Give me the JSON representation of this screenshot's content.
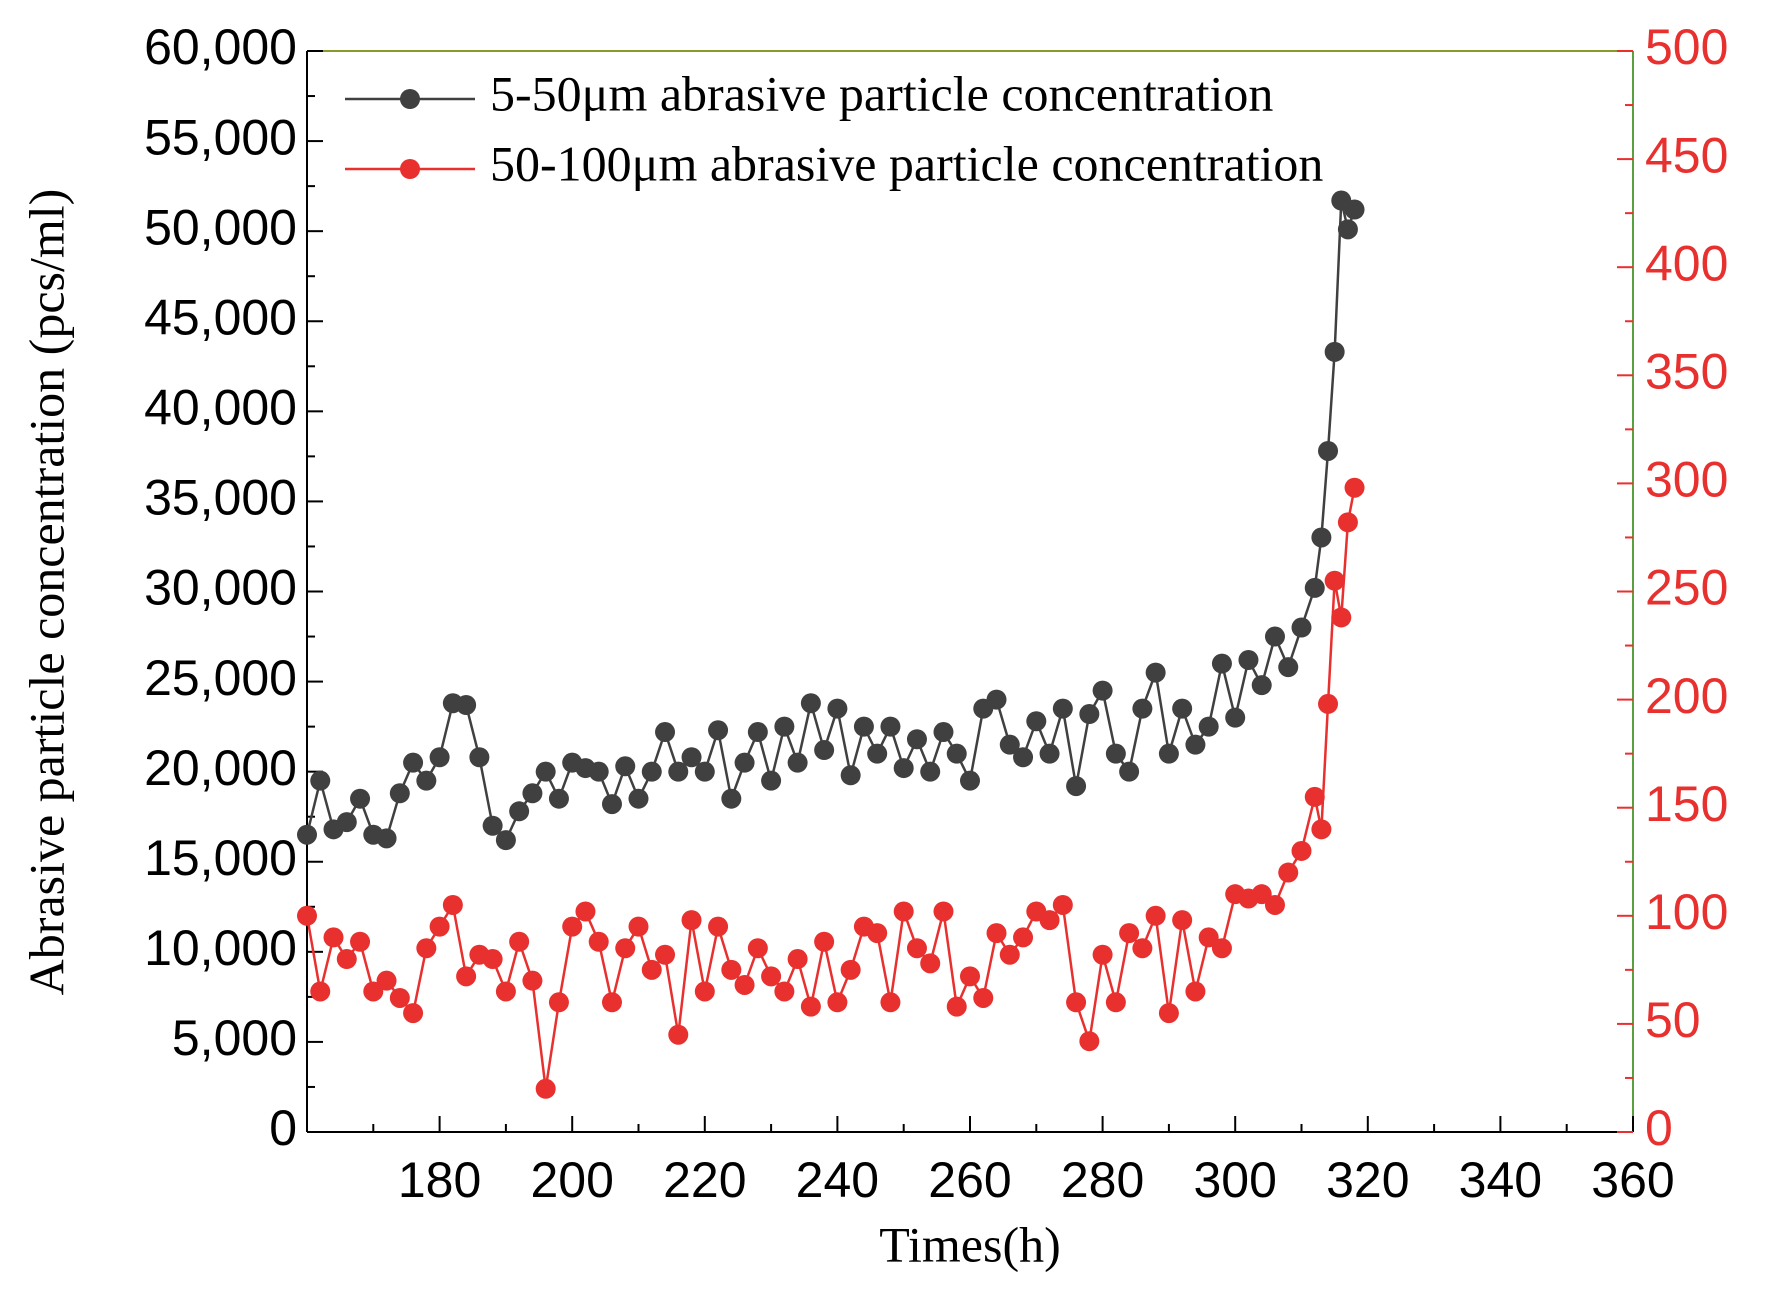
{
  "chart_data": {
    "type": "line",
    "xlabel": "Times(h)",
    "ylabel": "Abrasive particle concentration (pcs/ml)",
    "x": [
      160,
      162,
      164,
      166,
      168,
      170,
      172,
      174,
      176,
      178,
      180,
      182,
      184,
      186,
      188,
      190,
      192,
      194,
      196,
      198,
      200,
      202,
      204,
      206,
      208,
      210,
      212,
      214,
      216,
      218,
      220,
      222,
      224,
      226,
      228,
      230,
      232,
      234,
      236,
      238,
      240,
      242,
      244,
      246,
      248,
      250,
      252,
      254,
      256,
      258,
      260,
      262,
      264,
      266,
      268,
      270,
      272,
      274,
      276,
      278,
      280,
      282,
      284,
      286,
      288,
      290,
      292,
      294,
      296,
      298,
      300,
      302,
      304,
      306,
      308,
      310,
      312,
      313,
      314,
      315,
      316,
      317,
      318
    ],
    "series": [
      {
        "name": "5-50μm abrasive particle concentration",
        "color": "#404040",
        "values": [
          16500,
          19500,
          16800,
          17200,
          18500,
          16500,
          16300,
          18800,
          20500,
          19500,
          20800,
          23800,
          23700,
          20800,
          17000,
          16200,
          17800,
          18800,
          20000,
          18500,
          20500,
          20200,
          20000,
          18200,
          20300,
          18500,
          20000,
          22200,
          20000,
          20800,
          20000,
          22300,
          18500,
          20500,
          22200,
          19500,
          22500,
          20500,
          23800,
          21200,
          23500,
          19800,
          22500,
          21000,
          22500,
          20200,
          21800,
          20000,
          22200,
          21000,
          19500,
          23500,
          24000,
          21500,
          20800,
          22800,
          21000,
          23500,
          19200,
          23200,
          24500,
          21000,
          20000,
          23500,
          25500,
          21000,
          23500,
          21500,
          22500,
          26000,
          23000,
          26200,
          24800,
          27500,
          25800,
          28000,
          30200,
          33000,
          37800,
          43300,
          51700,
          50100,
          51200
        ]
      },
      {
        "name": "50-100μm abrasive particle concentration",
        "color": "#e8302f",
        "axis": "y2",
        "values": [
          100,
          65,
          90,
          80,
          88,
          65,
          70,
          62,
          55,
          85,
          95,
          105,
          72,
          82,
          80,
          65,
          88,
          70,
          20,
          60,
          95,
          102,
          88,
          60,
          85,
          95,
          75,
          82,
          45,
          98,
          65,
          95,
          75,
          68,
          85,
          72,
          65,
          80,
          58,
          88,
          60,
          75,
          95,
          92,
          60,
          102,
          85,
          78,
          102,
          58,
          72,
          62,
          92,
          82,
          90,
          102,
          98,
          105,
          60,
          42,
          82,
          60,
          92,
          85,
          100,
          55,
          98,
          65,
          90,
          85,
          110,
          108,
          110,
          105,
          120,
          130,
          155,
          140,
          198,
          255,
          238,
          282,
          298
        ]
      }
    ],
    "xlim": [
      160,
      360
    ],
    "xticks": [
      180,
      200,
      220,
      240,
      260,
      280,
      300,
      320,
      340,
      360
    ],
    "ylim": [
      0,
      60000
    ],
    "yticks": [
      0,
      {
        "value": 5000,
        "label": "5,000"
      },
      {
        "value": 10000,
        "label": "10,000"
      },
      {
        "value": 15000,
        "label": "15,000"
      },
      {
        "value": 20000,
        "label": "20,000"
      },
      {
        "value": 25000,
        "label": "25,000"
      },
      {
        "value": 30000,
        "label": "30,000"
      },
      {
        "value": 35000,
        "label": "35,000"
      },
      {
        "value": 40000,
        "label": "40,000"
      },
      {
        "value": 45000,
        "label": "45,000"
      },
      {
        "value": 50000,
        "label": "50,000"
      },
      {
        "value": 55000,
        "label": "55,000"
      },
      {
        "value": 60000,
        "label": "60,000"
      }
    ],
    "y2lim": [
      0,
      500
    ],
    "y2ticks": [
      0,
      50,
      100,
      150,
      200,
      250,
      300,
      350,
      400,
      450,
      500
    ],
    "y2color": "#e8302f",
    "legend": "upper left"
  }
}
